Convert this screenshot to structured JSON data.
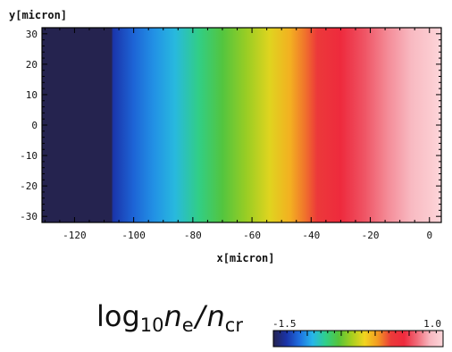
{
  "chart_data": {
    "type": "heatmap",
    "title": "",
    "ylabel": "y[micron]",
    "xlabel": "x[micron]",
    "xlim": [
      -131,
      4
    ],
    "ylim": [
      -32,
      32
    ],
    "x_ticks": [
      -120,
      -100,
      -80,
      -60,
      -40,
      -20,
      0
    ],
    "y_ticks": [
      30,
      20,
      10,
      0,
      -10,
      -20,
      -30
    ],
    "x_tick_labels": [
      "-120",
      "-100",
      "-80",
      "-60",
      "-40",
      "-20",
      "0"
    ],
    "y_tick_labels": [
      "30",
      "20",
      "10",
      "0",
      "-10",
      "-20",
      "-30"
    ],
    "colorbar": {
      "label_main": "log",
      "label_sub": "10",
      "label_var": "n",
      "label_var_sub": "e",
      "label_slash": "/",
      "label_den": "n",
      "label_den_sub": "cr",
      "min": -1.5,
      "max": 1.0,
      "min_label": "-1.5",
      "max_label": "1.0",
      "colormap": [
        "#25234f",
        "#1a33a8",
        "#1e6fe0",
        "#27b6ea",
        "#2fcf8a",
        "#55c43a",
        "#a6cf1f",
        "#f2d51f",
        "#f39a22",
        "#ec3b3a",
        "#ee2a3d",
        "#f06a78",
        "#f8b8c0",
        "#fdd6da"
      ]
    },
    "profile": {
      "description_units": "log10 ne/ncr along x, uniform in y",
      "x": [
        -131,
        -107.5,
        -107,
        -100,
        -93,
        -86,
        -78,
        -70,
        -62,
        -54,
        -47,
        -42,
        -38,
        -30,
        -22,
        -14,
        -6,
        0,
        4
      ],
      "value": [
        -1.5,
        -1.5,
        -1.3,
        -1.15,
        -1.02,
        -0.9,
        -0.72,
        -0.55,
        -0.38,
        -0.2,
        -0.03,
        0.12,
        0.25,
        0.42,
        0.55,
        0.7,
        0.82,
        0.92,
        1.0
      ]
    }
  }
}
